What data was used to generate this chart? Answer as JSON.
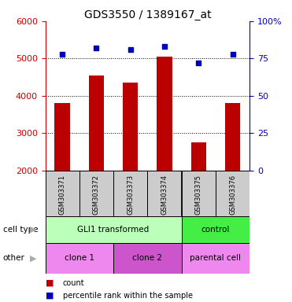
{
  "title": "GDS3550 / 1389167_at",
  "samples": [
    "GSM303371",
    "GSM303372",
    "GSM303373",
    "GSM303374",
    "GSM303375",
    "GSM303376"
  ],
  "counts": [
    3800,
    4550,
    4350,
    5050,
    2750,
    3800
  ],
  "percentiles": [
    78,
    82,
    81,
    83,
    72,
    78
  ],
  "ylim_left": [
    2000,
    6000
  ],
  "ylim_right": [
    0,
    100
  ],
  "left_ticks": [
    2000,
    3000,
    4000,
    5000,
    6000
  ],
  "right_ticks": [
    0,
    25,
    50,
    75,
    100
  ],
  "bar_color": "#bb0000",
  "dot_color": "#0000bb",
  "cell_type_labels": [
    {
      "text": "GLI1 transformed",
      "start": 0,
      "end": 4,
      "color": "#bbffbb"
    },
    {
      "text": "control",
      "start": 4,
      "end": 6,
      "color": "#44ee44"
    }
  ],
  "other_labels": [
    {
      "text": "clone 1",
      "start": 0,
      "end": 2,
      "color": "#ee88ee"
    },
    {
      "text": "clone 2",
      "start": 2,
      "end": 4,
      "color": "#cc55cc"
    },
    {
      "text": "parental cell",
      "start": 4,
      "end": 6,
      "color": "#ee88ee"
    }
  ],
  "row_label_cell_type": "cell type",
  "row_label_other": "other",
  "legend_count": "count",
  "legend_percentile": "percentile rank within the sample",
  "xlabel_color": "#cc0000",
  "ylabel_right_color": "#0000cc",
  "title_fontsize": 10,
  "tick_fontsize": 8,
  "bar_width": 0.45,
  "ybase": 2000
}
